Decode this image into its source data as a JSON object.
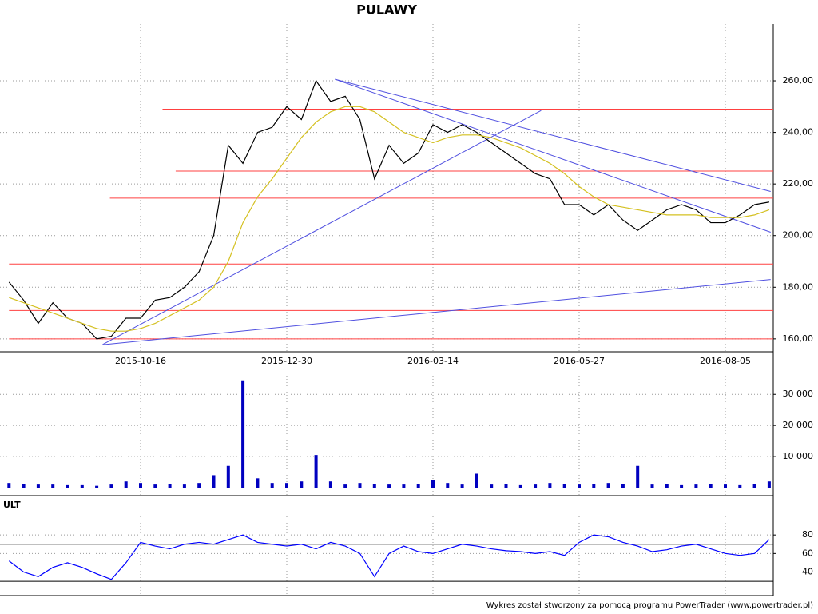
{
  "chart_data": {
    "type": "line",
    "title": "PULAWY",
    "footer": "Wykres został stworzony za pomocą programu PowerTrader (www.powertrader.pl)",
    "categories": [
      null,
      null,
      null,
      null,
      null,
      null,
      null,
      null,
      null,
      "2015-10-16",
      null,
      null,
      null,
      null,
      null,
      null,
      null,
      null,
      null,
      "2015-12-30",
      null,
      null,
      null,
      null,
      null,
      null,
      null,
      null,
      null,
      "2016-03-14",
      null,
      null,
      null,
      null,
      null,
      null,
      null,
      null,
      null,
      "2016-05-27",
      null,
      null,
      null,
      null,
      null,
      null,
      null,
      null,
      null,
      "2016-08-05",
      null,
      null,
      null
    ],
    "series": [
      {
        "name": "close",
        "color": "#000000",
        "values": [
          182,
          175,
          166,
          174,
          168,
          166,
          160,
          161,
          168,
          168,
          175,
          176,
          180,
          186,
          200,
          235,
          228,
          240,
          242,
          250,
          245,
          260,
          252,
          254,
          245,
          222,
          235,
          228,
          232,
          243,
          240,
          243,
          240,
          236,
          232,
          228,
          224,
          222,
          212,
          212,
          208,
          212,
          206,
          202,
          206,
          210,
          212,
          210,
          205,
          205,
          208,
          212,
          213
        ]
      },
      {
        "name": "average",
        "color": "#d4c020",
        "values": [
          176,
          174,
          172,
          170,
          168,
          166,
          164,
          163,
          163,
          164,
          166,
          169,
          172,
          175,
          180,
          190,
          205,
          215,
          222,
          230,
          238,
          244,
          248,
          250,
          250,
          248,
          244,
          240,
          238,
          236,
          238,
          239,
          239,
          238,
          236,
          234,
          231,
          228,
          224,
          219,
          215,
          212,
          211,
          210,
          209,
          208,
          208,
          208,
          207,
          207,
          207,
          208,
          210
        ]
      }
    ],
    "ylim": [
      155,
      282
    ],
    "yticks": [
      {
        "value": 160,
        "label": "160,00"
      },
      {
        "value": 180,
        "label": "180,00"
      },
      {
        "value": 200,
        "label": "200,00"
      },
      {
        "value": 220,
        "label": "220,00"
      },
      {
        "value": 240,
        "label": "240,00"
      },
      {
        "value": 260,
        "label": "260,00"
      }
    ],
    "levels": [
      {
        "value": 249,
        "from": 10.5
      },
      {
        "value": 225,
        "from": 11.4
      },
      {
        "value": 214.5,
        "from": 6.9
      },
      {
        "value": 201,
        "from": 32.2
      },
      {
        "value": 189,
        "from": 0
      },
      {
        "value": 171,
        "from": 0
      },
      {
        "value": 160,
        "from": 0
      }
    ],
    "level_color": "#ff4040",
    "trendlines": [
      {
        "from": [
          22.3,
          260.6
        ],
        "to": [
          52.1,
          217.1
        ]
      },
      {
        "from": [
          6.4,
          157.8
        ],
        "to": [
          36.4,
          248.5
        ]
      },
      {
        "from": [
          22.3,
          260.6
        ],
        "to": [
          52.1,
          201.3
        ]
      },
      {
        "from": [
          6.5,
          157.8
        ],
        "to": [
          52.1,
          183
        ]
      }
    ],
    "trend_color": "#5050e0",
    "volume": {
      "color": "#0000c0",
      "values": [
        1500,
        1200,
        1000,
        1000,
        800,
        800,
        600,
        1000,
        2000,
        1500,
        1000,
        1200,
        1000,
        1500,
        4000,
        7000,
        34500,
        3000,
        1500,
        1500,
        2000,
        10500,
        2000,
        1000,
        1500,
        1200,
        1000,
        1000,
        1200,
        2500,
        1500,
        1000,
        4500,
        1000,
        1200,
        800,
        1000,
        1500,
        1200,
        1000,
        1200,
        1500,
        1200,
        7000,
        1000,
        1200,
        800,
        1000,
        1200,
        1000,
        800,
        1200,
        2000
      ],
      "ylim": [
        0,
        37000
      ],
      "yticks": [
        {
          "value": 10000,
          "label": "10 000"
        },
        {
          "value": 20000,
          "label": "20 000"
        },
        {
          "value": 30000,
          "label": "30 000"
        }
      ]
    },
    "ult": {
      "name": "ULT",
      "color": "#0000ff",
      "values": [
        52,
        40,
        35,
        45,
        50,
        45,
        38,
        32,
        50,
        72,
        68,
        65,
        70,
        72,
        70,
        75,
        80,
        72,
        70,
        68,
        70,
        65,
        72,
        68,
        60,
        35,
        60,
        68,
        62,
        60,
        65,
        70,
        68,
        65,
        63,
        62,
        60,
        62,
        58,
        72,
        80,
        78,
        72,
        68,
        62,
        64,
        68,
        70,
        65,
        60,
        58,
        60,
        75
      ],
      "ylim": [
        18,
        100
      ],
      "yticks": [
        40,
        60,
        80
      ],
      "levels": [
        30,
        70
      ]
    }
  }
}
